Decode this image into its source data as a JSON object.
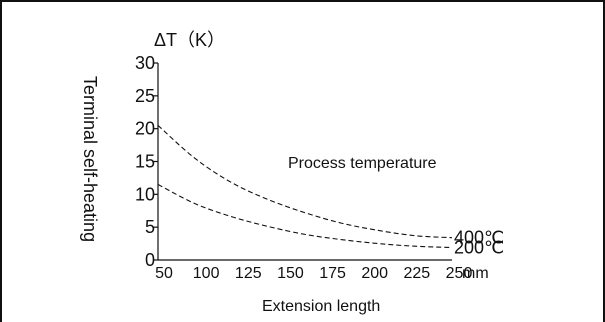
{
  "chart_data": {
    "type": "line",
    "title": "Process temperature",
    "xlabel": "Extension length",
    "ylabel": "Terminal self-heating",
    "y_unit_label": "ΔT（K）",
    "x_unit": "mm",
    "x_ticks": [
      "50",
      "100",
      "125",
      "150",
      "175",
      "200",
      "225",
      "250"
    ],
    "x_tick_values": [
      50,
      100,
      125,
      150,
      175,
      200,
      225,
      250
    ],
    "y_ticks": [
      "0",
      "5",
      "10",
      "15",
      "20",
      "25",
      "30"
    ],
    "xlim": [
      50,
      250
    ],
    "ylim": [
      0,
      30
    ],
    "grid": false,
    "series": [
      {
        "name": "400℃",
        "x": [
          50,
          75,
          100,
          125,
          150,
          175,
          200,
          225,
          250
        ],
        "values": [
          20.5,
          15.5,
          11.8,
          9.2,
          7.2,
          5.6,
          4.5,
          3.7,
          3.4
        ]
      },
      {
        "name": "200℃",
        "x": [
          50,
          75,
          100,
          125,
          150,
          175,
          200,
          225,
          250
        ],
        "values": [
          11.5,
          8.6,
          6.6,
          5.1,
          3.9,
          3.1,
          2.5,
          2.1,
          1.9
        ]
      }
    ]
  }
}
